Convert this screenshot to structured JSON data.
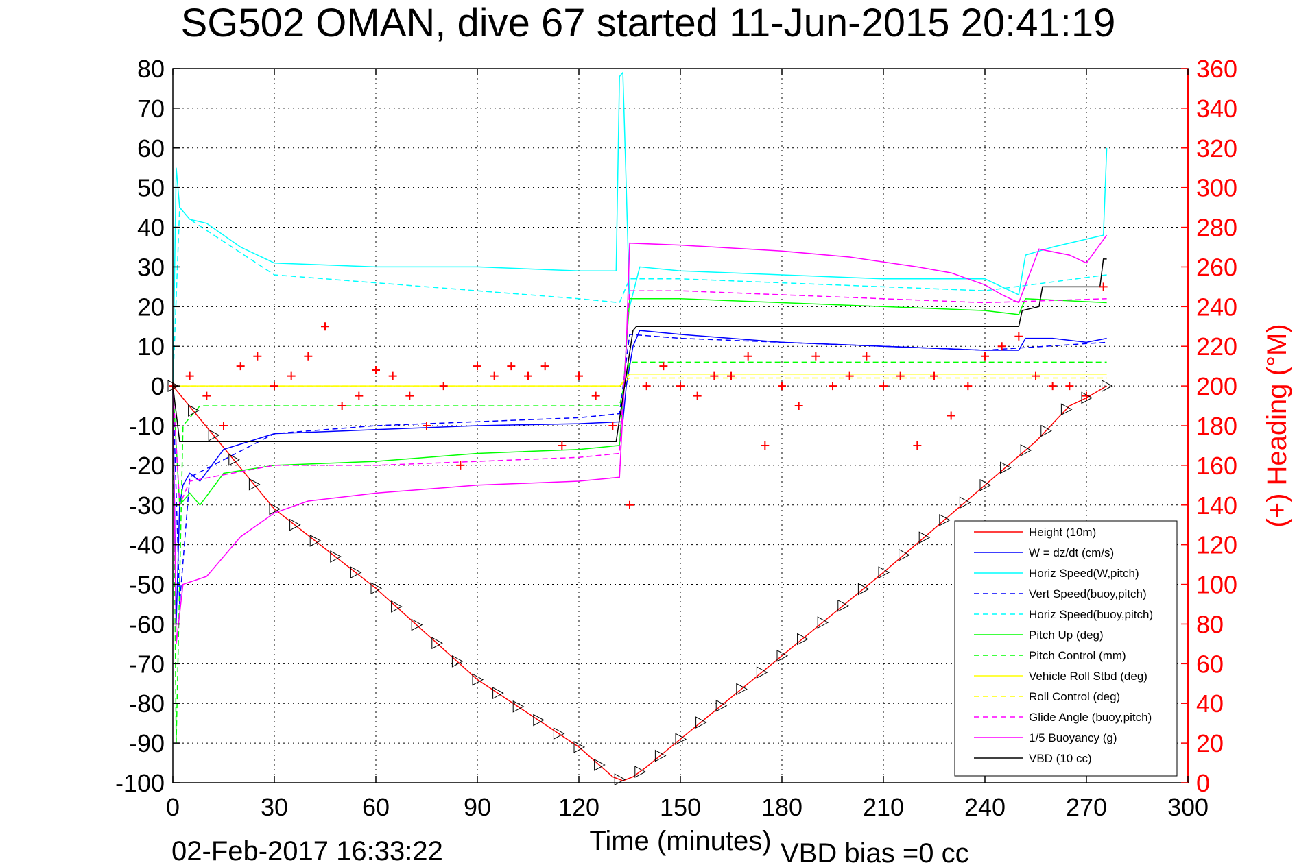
{
  "chart_data": {
    "type": "line",
    "title": "SG502 OMAN, dive 67 started 11-Jun-2015 20:41:19",
    "xlabel": "Time (minutes)",
    "ylabel_right": "(+) Heading (°M)",
    "xlim": [
      0,
      300
    ],
    "ylim_left": [
      -100,
      80
    ],
    "ylim_right": [
      0,
      360
    ],
    "x_ticks": [
      "0",
      "30",
      "60",
      "90",
      "120",
      "150",
      "180",
      "210",
      "240",
      "270",
      "300"
    ],
    "y_ticks_left": [
      "80",
      "70",
      "60",
      "50",
      "40",
      "30",
      "20",
      "10",
      "0",
      "-10",
      "-20",
      "-30",
      "-40",
      "-50",
      "-60",
      "-70",
      "-80",
      "-90",
      "-100"
    ],
    "y_ticks_right": [
      "360",
      "340",
      "320",
      "300",
      "280",
      "260",
      "240",
      "220",
      "200",
      "180",
      "160",
      "140",
      "120",
      "100",
      "80",
      "60",
      "40",
      "20",
      "0"
    ],
    "grid": true,
    "legend_position": "bottom-right",
    "colors": {
      "red": "#ff0000",
      "blue": "#0000ff",
      "cyan": "#00ffff",
      "green": "#00ff00",
      "yellow": "#ffff00",
      "magenta": "#ff00ff",
      "black": "#000000"
    },
    "series": [
      {
        "name": "Height (10m)",
        "color": "#ff0000",
        "style": "solid",
        "x": [
          0,
          30,
          60,
          90,
          120,
          130,
          133,
          136,
          140,
          180,
          210,
          240,
          255,
          265,
          270,
          276
        ],
        "y": [
          0,
          -31,
          -51,
          -74,
          -91,
          -98.5,
          -99.5,
          -98.5,
          -96,
          -68,
          -47,
          -25,
          -14,
          -5,
          -3,
          0
        ]
      },
      {
        "name": "W = dz/dt (cm/s)",
        "color": "#0000ff",
        "style": "solid",
        "x": [
          0,
          1,
          2,
          3,
          5,
          8,
          15,
          30,
          60,
          90,
          120,
          133,
          134,
          136,
          138,
          150,
          180,
          210,
          240,
          250,
          252,
          260,
          270,
          276
        ],
        "y": [
          0,
          -60,
          -30,
          -25,
          -22,
          -24,
          -16,
          -12,
          -11,
          -10,
          -9.5,
          -9,
          0,
          10,
          14,
          13,
          11,
          10,
          9,
          9,
          12,
          12,
          11,
          12
        ]
      },
      {
        "name": "Horiz Speed(W,pitch)",
        "color": "#00ffff",
        "style": "solid",
        "x": [
          0,
          1,
          2,
          5,
          10,
          20,
          30,
          60,
          90,
          120,
          131,
          132,
          133,
          134,
          135,
          138,
          150,
          180,
          210,
          240,
          250,
          252,
          260,
          270,
          275,
          276
        ],
        "y": [
          0,
          55,
          45,
          42,
          41,
          35,
          31,
          30,
          30,
          29,
          29,
          78,
          79,
          50,
          20,
          30,
          29,
          28,
          27,
          27,
          23,
          33,
          35,
          37,
          38,
          60
        ]
      },
      {
        "name": "Vert Speed(buoy,pitch)",
        "color": "#0000ff",
        "style": "dashed",
        "x": [
          0,
          2,
          5,
          30,
          60,
          90,
          120,
          132,
          135,
          150,
          180,
          210,
          240,
          276
        ],
        "y": [
          0,
          -55,
          -23,
          -12,
          -10,
          -9,
          -8,
          -7,
          13,
          12,
          11,
          10,
          9,
          11
        ]
      },
      {
        "name": "Horiz Speed(buoy,pitch)",
        "color": "#00ffff",
        "style": "dashed",
        "x": [
          0,
          2,
          5,
          30,
          60,
          90,
          120,
          132,
          135,
          150,
          180,
          210,
          240,
          276
        ],
        "y": [
          0,
          45,
          42,
          28,
          26,
          24,
          22,
          21,
          27,
          27,
          26,
          25,
          24,
          28
        ]
      },
      {
        "name": "Pitch Up (deg)",
        "color": "#00ff00",
        "style": "solid",
        "x": [
          0,
          2,
          5,
          8,
          15,
          30,
          60,
          90,
          120,
          132,
          135,
          150,
          180,
          210,
          240,
          250,
          252,
          276
        ],
        "y": [
          0,
          -30,
          -27,
          -30,
          -22,
          -20,
          -19,
          -17,
          -16,
          -15,
          22,
          22,
          21,
          20,
          19,
          18,
          22,
          21
        ]
      },
      {
        "name": "Pitch Control (mm)",
        "color": "#00ff00",
        "style": "dashed",
        "x": [
          0,
          1,
          3,
          8,
          30,
          60,
          90,
          120,
          132,
          135,
          150,
          180,
          210,
          240,
          276
        ],
        "y": [
          0,
          -90,
          -10,
          -5,
          -5,
          -5,
          -5,
          -5,
          -5,
          6,
          6,
          6,
          6,
          6,
          6
        ]
      },
      {
        "name": "Vehicle Roll Stbd (deg)",
        "color": "#ffff00",
        "style": "solid",
        "x": [
          0,
          30,
          60,
          90,
          120,
          132,
          135,
          150,
          180,
          210,
          240,
          276
        ],
        "y": [
          0,
          0,
          0,
          0,
          0,
          0,
          3,
          3,
          3,
          3,
          3,
          3
        ]
      },
      {
        "name": "Roll Control (deg)",
        "color": "#ffff00",
        "style": "dashed",
        "x": [
          0,
          30,
          60,
          90,
          120,
          132,
          135,
          150,
          180,
          210,
          240,
          276
        ],
        "y": [
          0,
          0,
          0,
          0,
          0,
          0,
          2,
          2,
          2,
          2,
          2,
          2
        ]
      },
      {
        "name": "Glide Angle (buoy,pitch)",
        "color": "#ff00ff",
        "style": "dashed",
        "x": [
          0,
          2,
          5,
          30,
          60,
          90,
          120,
          132,
          135,
          150,
          180,
          210,
          240,
          276
        ],
        "y": [
          0,
          -30,
          -24,
          -20,
          -20,
          -19,
          -18,
          -17,
          24,
          24,
          23,
          22,
          21,
          22
        ]
      },
      {
        "name": "1/5 Buoyancy (g)",
        "color": "#ff00ff",
        "style": "solid",
        "x": [
          0,
          1,
          3,
          10,
          20,
          30,
          40,
          60,
          90,
          120,
          132,
          134,
          135,
          150,
          180,
          200,
          220,
          230,
          240,
          245,
          250,
          256,
          265,
          270,
          276
        ],
        "y": [
          0,
          -65,
          -50,
          -48,
          -38,
          -32,
          -29,
          -27,
          -25,
          -24,
          -23,
          10,
          36,
          35.5,
          34,
          32.5,
          30,
          28.5,
          25.5,
          23,
          21,
          34.5,
          33,
          31,
          38
        ]
      },
      {
        "name": "VBD (10 cc)",
        "color": "#000000",
        "style": "solid",
        "x": [
          0,
          2,
          4,
          130,
          131,
          136,
          137,
          250,
          251,
          256,
          257,
          274,
          275,
          276
        ],
        "y": [
          0,
          -14,
          -14,
          -14,
          -14,
          14,
          15,
          15,
          19,
          20,
          25,
          25,
          32,
          32
        ]
      },
      {
        "name": "Heading",
        "axis": "right",
        "color": "#ff0000",
        "marker": "+",
        "x": [
          0,
          5,
          10,
          15,
          20,
          25,
          30,
          35,
          40,
          45,
          50,
          55,
          60,
          65,
          70,
          75,
          80,
          85,
          90,
          95,
          100,
          105,
          110,
          115,
          120,
          125,
          130,
          135,
          140,
          145,
          150,
          155,
          160,
          165,
          170,
          175,
          180,
          185,
          190,
          195,
          200,
          205,
          210,
          215,
          220,
          225,
          230,
          235,
          240,
          245,
          250,
          255,
          260,
          265,
          270,
          275
        ],
        "y": [
          200,
          205,
          195,
          180,
          210,
          215,
          200,
          205,
          215,
          230,
          190,
          195,
          208,
          205,
          195,
          180,
          200,
          160,
          210,
          205,
          210,
          205,
          210,
          170,
          205,
          195,
          180,
          140,
          200,
          210,
          200,
          195,
          205,
          205,
          215,
          170,
          200,
          190,
          215,
          200,
          205,
          215,
          200,
          205,
          170,
          205,
          185,
          200,
          215,
          220,
          225,
          205,
          200,
          200,
          195,
          250
        ]
      }
    ]
  },
  "annotations": {
    "date_stamp": "02-Feb-2017 16:33:22",
    "vbd_bias": "VBD bias =0 cc"
  }
}
